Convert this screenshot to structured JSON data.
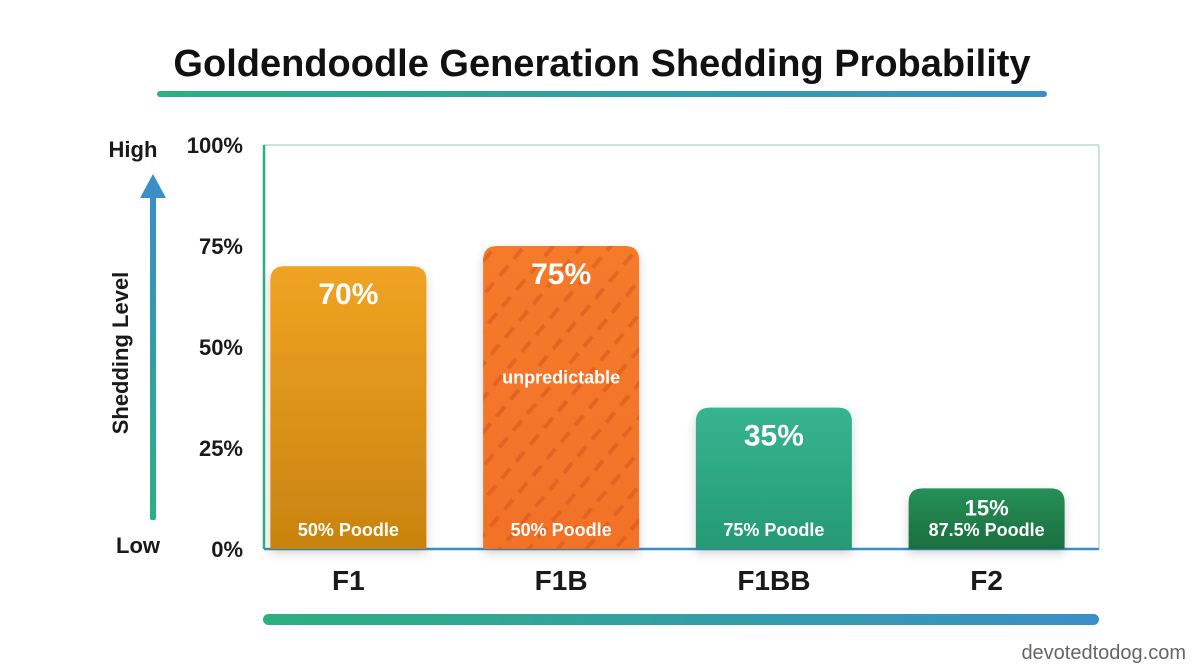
{
  "chart_data": {
    "type": "bar",
    "title": "Goldendoodle Generation Shedding Probability",
    "ylabel": "Shedding Level",
    "y_axis_high": "High",
    "y_axis_low": "Low",
    "ylim": [
      0,
      100
    ],
    "yticks": [
      "0%",
      "25%",
      "50%",
      "75%",
      "100%"
    ],
    "ytick_values": [
      0,
      25,
      50,
      75,
      100
    ],
    "categories": [
      "F1",
      "F1B",
      "F1BB",
      "F2"
    ],
    "values": [
      70,
      75,
      35,
      15
    ],
    "value_labels": [
      "70%",
      "75%",
      "35%",
      "15%"
    ],
    "poodle_labels": [
      "50% Poodle",
      "50% Poodle",
      "75% Poodle",
      "87.5% Poodle"
    ],
    "annotations": [
      {
        "category": "F1B",
        "text": "unpredictable",
        "style": "hatched"
      }
    ],
    "colors": [
      "#e69a1c",
      "#f47a2e",
      "#2ea783",
      "#1e7d48"
    ],
    "gradient_accent": [
      "#2bb07f",
      "#3a8fc8"
    ]
  },
  "footer": {
    "credit": "devotedtodog.com"
  }
}
